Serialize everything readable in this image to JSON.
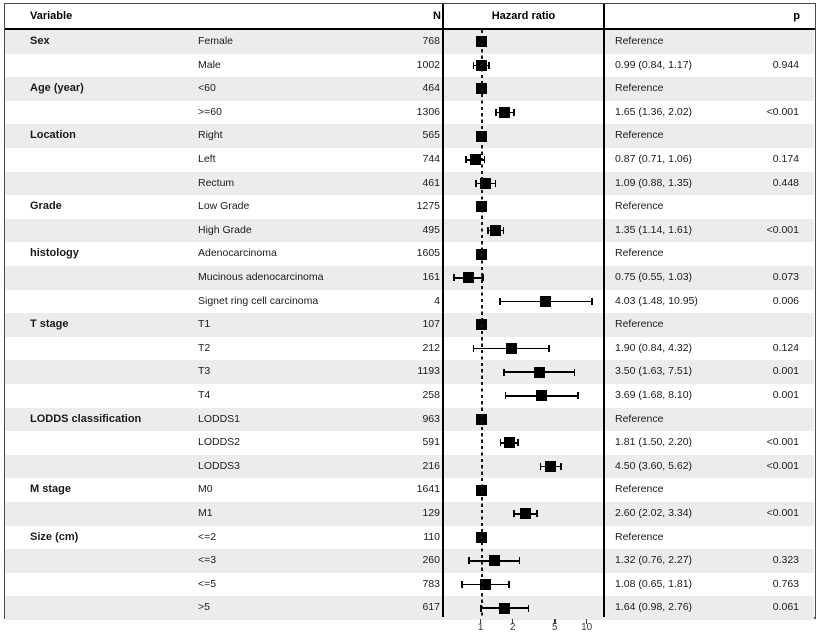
{
  "header": {
    "variable": "Variable",
    "n": "N",
    "hazard_ratio": "Hazard ratio",
    "p": "p"
  },
  "colors": {
    "row_shade": "#ececec",
    "marker": "#000000",
    "border": "#4a4a4a",
    "reference_line": "#161616"
  },
  "chart_data": {
    "type": "forest",
    "x_scale": "log",
    "x_ticks": [
      "1",
      "2",
      "5",
      "10"
    ],
    "x_tick_values": [
      1,
      2,
      5,
      10
    ],
    "reference_value": 1,
    "x_range": [
      0.43,
      14.5
    ],
    "rows": [
      {
        "group": "Sex",
        "level": "Female",
        "n": "768",
        "hr_text": "Reference",
        "p": "",
        "hr": 1,
        "lo": null,
        "hi": null,
        "ref": true
      },
      {
        "group": "",
        "level": "Male",
        "n": "1002",
        "hr_text": "0.99 (0.84, 1.17)",
        "p": "0.944",
        "hr": 0.99,
        "lo": 0.84,
        "hi": 1.17,
        "ref": false
      },
      {
        "group": "Age (year)",
        "level": "<60",
        "n": "464",
        "hr_text": "Reference",
        "p": "",
        "hr": 1,
        "lo": null,
        "hi": null,
        "ref": true
      },
      {
        "group": "",
        "level": ">=60",
        "n": "1306",
        "hr_text": "1.65 (1.36, 2.02)",
        "p": "<0.001",
        "hr": 1.65,
        "lo": 1.36,
        "hi": 2.02,
        "ref": false
      },
      {
        "group": "Location",
        "level": "Right",
        "n": "565",
        "hr_text": "Reference",
        "p": "",
        "hr": 1,
        "lo": null,
        "hi": null,
        "ref": true
      },
      {
        "group": "",
        "level": "Left",
        "n": "744",
        "hr_text": "0.87 (0.71, 1.06)",
        "p": "0.174",
        "hr": 0.87,
        "lo": 0.71,
        "hi": 1.06,
        "ref": false
      },
      {
        "group": "",
        "level": "Rectum",
        "n": "461",
        "hr_text": "1.09 (0.88, 1.35)",
        "p": "0.448",
        "hr": 1.09,
        "lo": 0.88,
        "hi": 1.35,
        "ref": false
      },
      {
        "group": "Grade",
        "level": "Low Grade",
        "n": "1275",
        "hr_text": "Reference",
        "p": "",
        "hr": 1,
        "lo": null,
        "hi": null,
        "ref": true
      },
      {
        "group": "",
        "level": "High Grade",
        "n": "495",
        "hr_text": "1.35 (1.14, 1.61)",
        "p": "<0.001",
        "hr": 1.35,
        "lo": 1.14,
        "hi": 1.61,
        "ref": false
      },
      {
        "group": "histology",
        "level": "Adenocarcinoma",
        "n": "1605",
        "hr_text": "Reference",
        "p": "",
        "hr": 1,
        "lo": null,
        "hi": null,
        "ref": true
      },
      {
        "group": "",
        "level": "Mucinous adenocarcinoma",
        "n": "161",
        "hr_text": "0.75 (0.55, 1.03)",
        "p": "0.073",
        "hr": 0.75,
        "lo": 0.55,
        "hi": 1.03,
        "ref": false
      },
      {
        "group": "",
        "level": "Signet ring cell carcinoma",
        "n": "4",
        "hr_text": "4.03 (1.48, 10.95)",
        "p": "0.006",
        "hr": 4.03,
        "lo": 1.48,
        "hi": 10.95,
        "ref": false
      },
      {
        "group": "T stage",
        "level": "T1",
        "n": "107",
        "hr_text": "Reference",
        "p": "",
        "hr": 1,
        "lo": null,
        "hi": null,
        "ref": true
      },
      {
        "group": "",
        "level": "T2",
        "n": "212",
        "hr_text": "1.90 (0.84, 4.32)",
        "p": "0.124",
        "hr": 1.9,
        "lo": 0.84,
        "hi": 4.32,
        "ref": false
      },
      {
        "group": "",
        "level": "T3",
        "n": "1193",
        "hr_text": "3.50 (1.63, 7.51)",
        "p": "0.001",
        "hr": 3.5,
        "lo": 1.63,
        "hi": 7.51,
        "ref": false
      },
      {
        "group": "",
        "level": "T4",
        "n": "258",
        "hr_text": "3.69 (1.68, 8.10)",
        "p": "0.001",
        "hr": 3.69,
        "lo": 1.68,
        "hi": 8.1,
        "ref": false
      },
      {
        "group": "LODDS classification",
        "level": "LODDS1",
        "n": "963",
        "hr_text": "Reference",
        "p": "",
        "hr": 1,
        "lo": null,
        "hi": null,
        "ref": true
      },
      {
        "group": "",
        "level": "LODDS2",
        "n": "591",
        "hr_text": "1.81 (1.50, 2.20)",
        "p": "<0.001",
        "hr": 1.81,
        "lo": 1.5,
        "hi": 2.2,
        "ref": false
      },
      {
        "group": "",
        "level": "LODDS3",
        "n": "216",
        "hr_text": "4.50 (3.60, 5.62)",
        "p": "<0.001",
        "hr": 4.5,
        "lo": 3.6,
        "hi": 5.62,
        "ref": false
      },
      {
        "group": "M stage",
        "level": "M0",
        "n": "1641",
        "hr_text": "Reference",
        "p": "",
        "hr": 1,
        "lo": null,
        "hi": null,
        "ref": true
      },
      {
        "group": "",
        "level": "M1",
        "n": "129",
        "hr_text": "2.60 (2.02, 3.34)",
        "p": "<0.001",
        "hr": 2.6,
        "lo": 2.02,
        "hi": 3.34,
        "ref": false
      },
      {
        "group": "Size (cm)",
        "level": "<=2",
        "n": "110",
        "hr_text": "Reference",
        "p": "",
        "hr": 1,
        "lo": null,
        "hi": null,
        "ref": true
      },
      {
        "group": "",
        "level": "<=3",
        "n": "260",
        "hr_text": "1.32 (0.76, 2.27)",
        "p": "0.323",
        "hr": 1.32,
        "lo": 0.76,
        "hi": 2.27,
        "ref": false
      },
      {
        "group": "",
        "level": "<=5",
        "n": "783",
        "hr_text": "1.08 (0.65, 1.81)",
        "p": "0.763",
        "hr": 1.08,
        "lo": 0.65,
        "hi": 1.81,
        "ref": false
      },
      {
        "group": "",
        "level": ">5",
        "n": "617",
        "hr_text": "1.64 (0.98, 2.76)",
        "p": "0.061",
        "hr": 1.64,
        "lo": 0.98,
        "hi": 2.76,
        "ref": false
      }
    ]
  }
}
